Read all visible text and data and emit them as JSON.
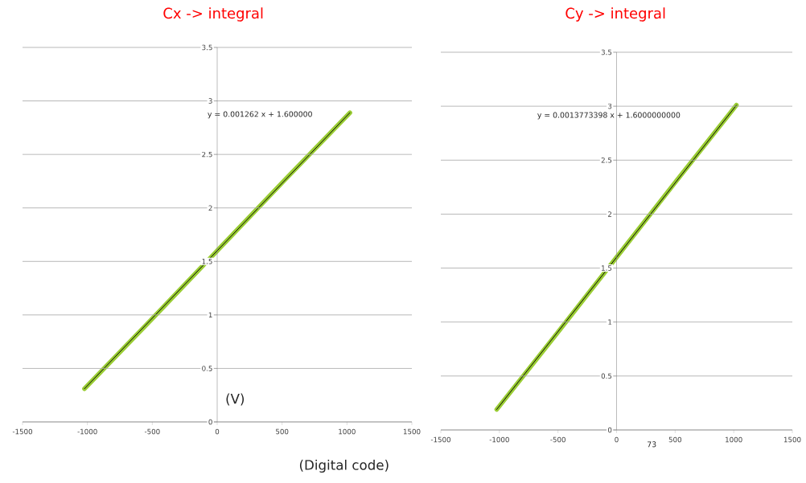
{
  "chart_data": [
    {
      "type": "line",
      "title": "Cx -> integral",
      "xlabel": "(Digital code)",
      "ylabel": "(V)",
      "annotations": [
        "y = 0.001262 x + 1.600000"
      ],
      "xlim": [
        -1500,
        1500
      ],
      "ylim": [
        0,
        3.5
      ],
      "xticks": [
        -1500,
        -1000,
        -500,
        0,
        500,
        1000,
        1500
      ],
      "yticks": [
        0,
        0.5,
        1,
        1.5,
        2,
        2.5,
        3,
        3.5
      ],
      "grid": "y",
      "series": [
        {
          "color": "#99cc33",
          "x": [
            -1023,
            -512,
            0,
            512,
            1023
          ],
          "values": [
            0.31,
            0.95,
            1.6,
            2.25,
            2.89
          ]
        },
        {
          "type": "line",
          "color": "#000000",
          "x": [
            -1023,
            1023
          ],
          "values": [
            0.31,
            2.89
          ]
        }
      ]
    },
    {
      "type": "line",
      "title": "Cy -> integral",
      "annotations": [
        "y = 0.0013773398 x + 1.6000000000",
        "73"
      ],
      "xlim": [
        -1500,
        1500
      ],
      "ylim": [
        0,
        3.5
      ],
      "xticks": [
        -1500,
        -1000,
        -500,
        0,
        500,
        1000,
        1500
      ],
      "yticks": [
        0,
        0.5,
        1,
        1.5,
        2,
        2.5,
        3,
        3.5
      ],
      "grid": "y",
      "series": [
        {
          "color": "#99cc33",
          "x": [
            -1023,
            -512,
            0,
            512,
            1023
          ],
          "values": [
            0.19,
            0.89,
            1.6,
            2.31,
            3.01
          ]
        },
        {
          "type": "line",
          "color": "#000000",
          "x": [
            -1023,
            1023
          ],
          "values": [
            0.19,
            3.01
          ]
        }
      ]
    }
  ]
}
